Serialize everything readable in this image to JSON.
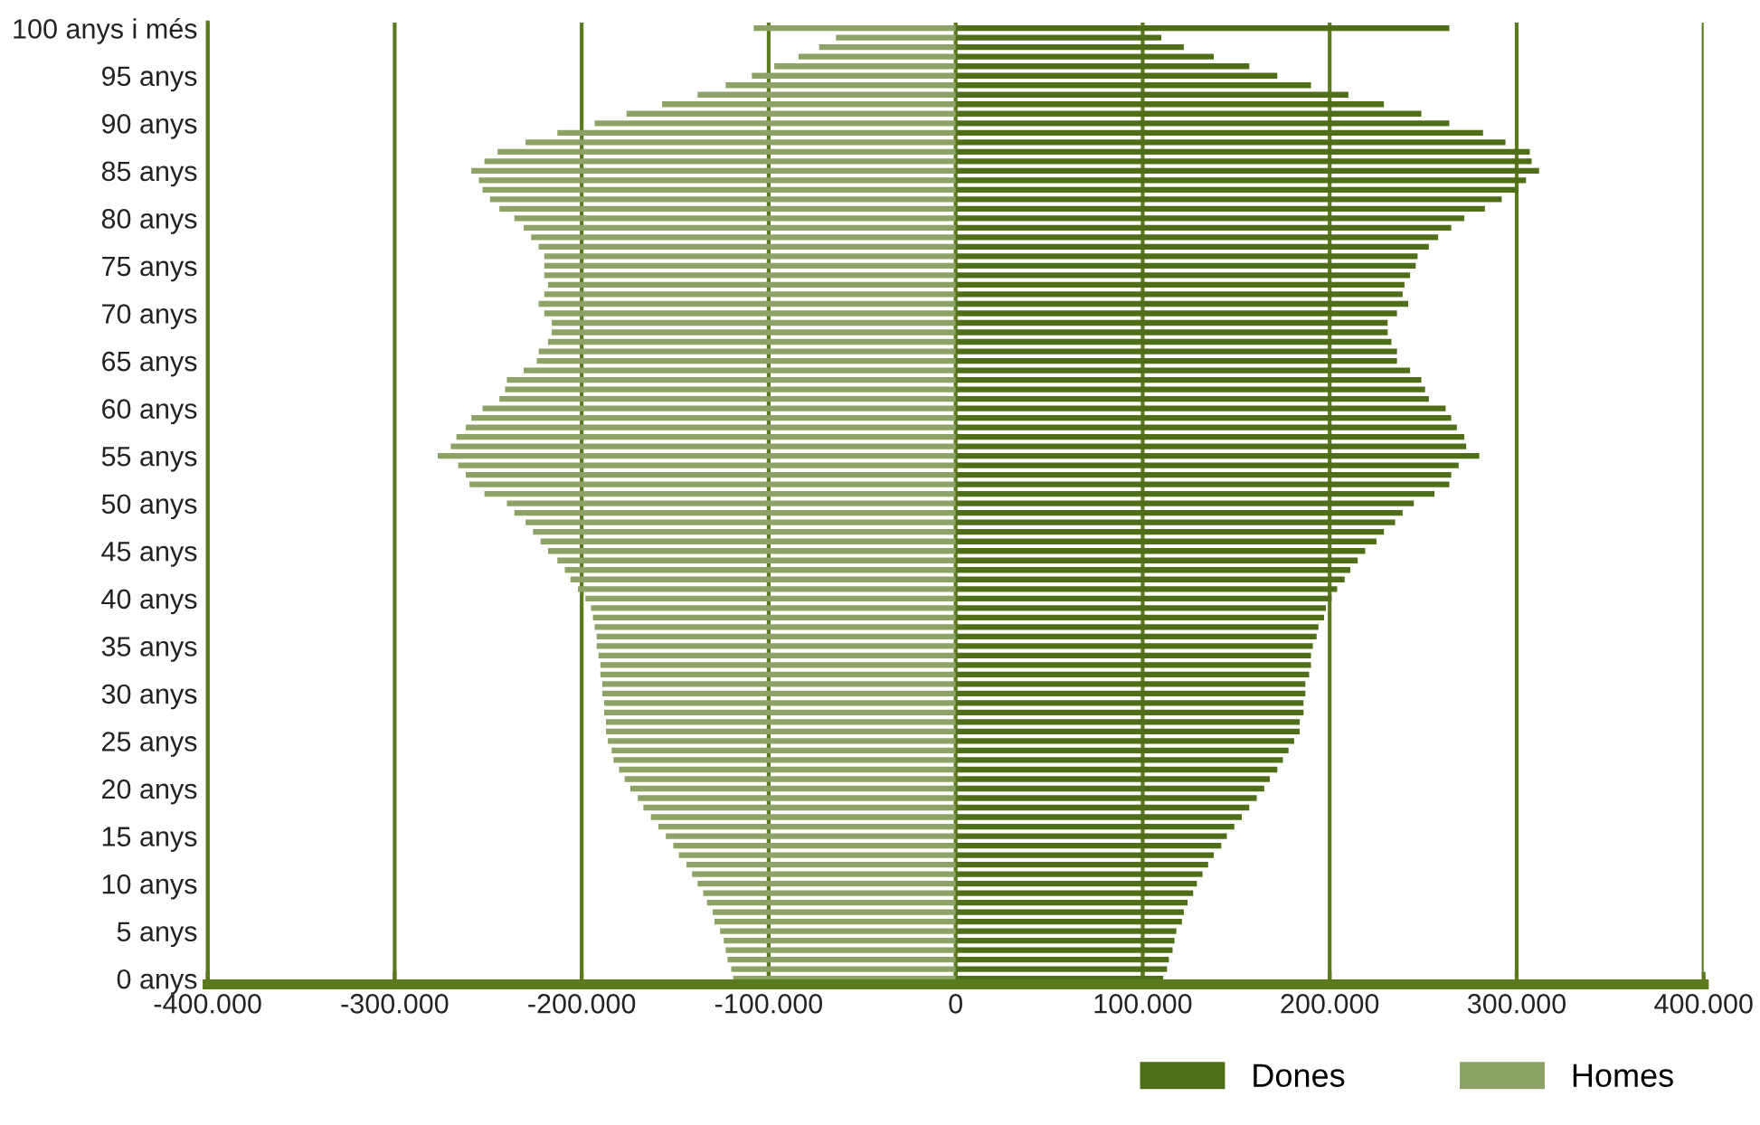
{
  "chart_data": {
    "type": "bar",
    "orientation": "horizontal",
    "categories": [
      "100 anys i més",
      null,
      null,
      null,
      null,
      "95 anys",
      null,
      null,
      null,
      null,
      "90 anys",
      null,
      null,
      null,
      null,
      "85 anys",
      null,
      null,
      null,
      null,
      "80 anys",
      null,
      null,
      null,
      null,
      "75 anys",
      null,
      null,
      null,
      null,
      "70 anys",
      null,
      null,
      null,
      null,
      "65 anys",
      null,
      null,
      null,
      null,
      "60 anys",
      null,
      null,
      null,
      null,
      "55 anys",
      null,
      null,
      null,
      null,
      "50 anys",
      null,
      null,
      null,
      null,
      "45 anys",
      null,
      null,
      null,
      null,
      "40 anys",
      null,
      null,
      null,
      null,
      "35 anys",
      null,
      null,
      null,
      null,
      "30 anys",
      null,
      null,
      null,
      null,
      "25 anys",
      null,
      null,
      null,
      null,
      "20 anys",
      null,
      null,
      null,
      null,
      "15 anys",
      null,
      null,
      null,
      null,
      "10 anys",
      null,
      null,
      null,
      null,
      "5 anys",
      null,
      null,
      null,
      null,
      "0 anys"
    ],
    "series": [
      {
        "name": "Dones",
        "color": "#4e6e17",
        "values": [
          264000,
          110000,
          122000,
          138000,
          157000,
          172000,
          190000,
          210000,
          229000,
          249000,
          264000,
          282000,
          294000,
          307000,
          308000,
          312000,
          305000,
          301000,
          292000,
          283000,
          272000,
          265000,
          258000,
          253000,
          247000,
          246000,
          243000,
          240000,
          239000,
          242000,
          236000,
          231000,
          231000,
          233000,
          236000,
          236000,
          243000,
          249000,
          251000,
          253000,
          262000,
          265000,
          268000,
          272000,
          273000,
          280000,
          269000,
          265000,
          264000,
          256000,
          245000,
          239000,
          235000,
          229000,
          225000,
          219000,
          215000,
          211000,
          208000,
          204000,
          201000,
          198000,
          197000,
          194000,
          193000,
          191000,
          190000,
          190000,
          189000,
          187000,
          187000,
          186000,
          186000,
          184000,
          184000,
          181000,
          178000,
          175000,
          172000,
          168000,
          165000,
          161000,
          157000,
          153000,
          149000,
          145000,
          142000,
          138000,
          135000,
          132000,
          129000,
          127000,
          124000,
          122000,
          121000,
          118000,
          117000,
          116000,
          114000,
          113000,
          111000
        ]
      },
      {
        "name": "Homes",
        "color": "#8da365",
        "values": [
          -108000,
          -64000,
          -73000,
          -84000,
          -97000,
          -109000,
          -123000,
          -138000,
          -157000,
          -176000,
          -193000,
          -213000,
          -230000,
          -245000,
          -252000,
          -259000,
          -255000,
          -253000,
          -249000,
          -244000,
          -236000,
          -231000,
          -227000,
          -223000,
          -220000,
          -220000,
          -220000,
          -218000,
          -220000,
          -223000,
          -220000,
          -216000,
          -216000,
          -218000,
          -223000,
          -224000,
          -231000,
          -240000,
          -241000,
          -244000,
          -253000,
          -259000,
          -262000,
          -267000,
          -270000,
          -277000,
          -266000,
          -262000,
          -260000,
          -252000,
          -240000,
          -236000,
          -230000,
          -226000,
          -222000,
          -218000,
          -213000,
          -209000,
          -206000,
          -202000,
          -198000,
          -195000,
          -194000,
          -193000,
          -192000,
          -192000,
          -191000,
          -190000,
          -190000,
          -189000,
          -189000,
          -188000,
          -188000,
          -187000,
          -187000,
          -186000,
          -184000,
          -183000,
          -180000,
          -177000,
          -174000,
          -170000,
          -167000,
          -163000,
          -159000,
          -155000,
          -151000,
          -148000,
          -144000,
          -141000,
          -138000,
          -135000,
          -133000,
          -130000,
          -129000,
          -126000,
          -124000,
          -123000,
          -122000,
          -120000,
          -119000
        ]
      }
    ],
    "xlim": [
      -400000,
      400000
    ],
    "xticks": [
      {
        "value": -400000,
        "label": "-400.000"
      },
      {
        "value": -300000,
        "label": "-300.000"
      },
      {
        "value": -200000,
        "label": "-200.000"
      },
      {
        "value": -100000,
        "label": "-100.000"
      },
      0,
      {
        "value": 100000,
        "label": "100.000"
      },
      {
        "value": 200000,
        "label": "200.000"
      },
      {
        "value": 300000,
        "label": "300.000"
      },
      {
        "value": 400000,
        "label": "400.000"
      }
    ],
    "grid": "x",
    "legend": "bottom right",
    "stacked": true
  }
}
